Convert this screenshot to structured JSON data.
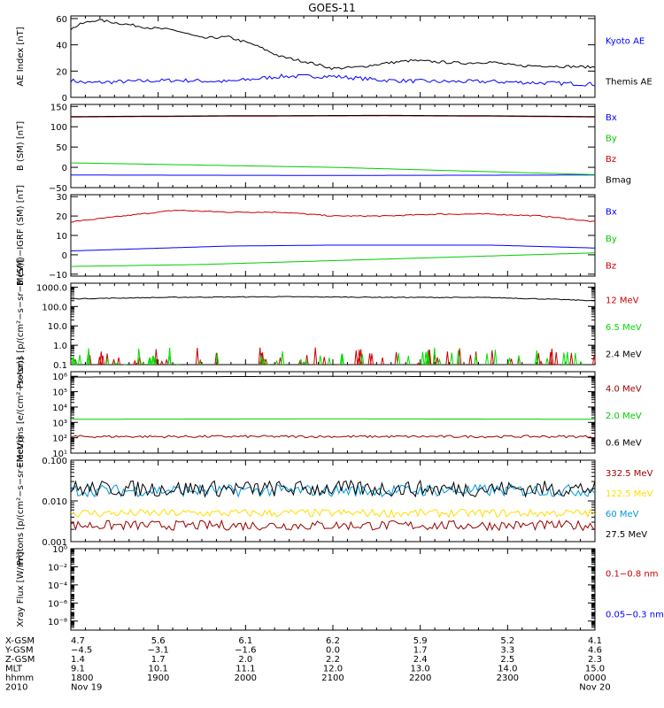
{
  "title": "GOES-11",
  "chart_data": [
    {
      "type": "line",
      "ylabel": "AE Index [nT]",
      "ylim": [
        0,
        62
      ],
      "scale": "linear",
      "yticks": [
        {
          "v": 0,
          "t": "0"
        },
        {
          "v": 20,
          "t": "20"
        },
        {
          "v": 40,
          "t": "40"
        },
        {
          "v": 60,
          "t": "60"
        }
      ],
      "series": [
        {
          "name": "Kyoto AE",
          "color": "#0000ff",
          "noise": 1.5,
          "x": [
            0,
            0.03,
            0.1,
            0.2,
            0.3,
            0.4,
            0.5,
            0.6,
            0.7,
            0.8,
            0.9,
            1.0
          ],
          "values": [
            13,
            11,
            12,
            13,
            12,
            16,
            16,
            13,
            12,
            12,
            11,
            10
          ]
        },
        {
          "name": "Themis AE",
          "color": "#000000",
          "noise": 1.0,
          "x": [
            0,
            0.02,
            0.05,
            0.1,
            0.15,
            0.2,
            0.25,
            0.3,
            0.35,
            0.4,
            0.45,
            0.5,
            0.55,
            0.6,
            0.65,
            0.7,
            0.75,
            0.8,
            0.85,
            0.9,
            1.0
          ],
          "values": [
            52,
            56,
            59,
            56,
            53,
            51,
            45,
            46,
            40,
            31,
            27,
            22,
            23,
            26,
            28,
            27,
            26,
            27,
            24,
            24,
            23
          ]
        }
      ]
    },
    {
      "type": "line",
      "ylabel": "B (SM) [nT]",
      "ylim": [
        -50,
        155
      ],
      "scale": "linear",
      "yticks": [
        {
          "v": -50,
          "t": "−50"
        },
        {
          "v": 0,
          "t": "0"
        },
        {
          "v": 50,
          "t": "50"
        },
        {
          "v": 100,
          "t": "100"
        },
        {
          "v": 150,
          "t": "150"
        }
      ],
      "series": [
        {
          "name": "Bx",
          "color": "#0000ff",
          "noise": 0,
          "x": [
            0,
            0.5,
            1.0
          ],
          "values": [
            -19,
            -20,
            -19
          ]
        },
        {
          "name": "By",
          "color": "#00cc00",
          "noise": 0,
          "x": [
            0,
            0.5,
            1.0
          ],
          "values": [
            11,
            0,
            -18
          ]
        },
        {
          "name": "Bz",
          "color": "#cc0000",
          "noise": 0,
          "x": [
            0,
            0.3,
            0.6,
            0.8,
            1.0
          ],
          "values": [
            124,
            126,
            127,
            126,
            124
          ]
        },
        {
          "name": "Bmag",
          "color": "#000000",
          "noise": 0,
          "x": [
            0,
            0.3,
            0.6,
            0.8,
            1.0
          ],
          "values": [
            125,
            127,
            128,
            127,
            125
          ]
        }
      ]
    },
    {
      "type": "line",
      "ylabel": "B (SM)−IGRF (SM) [nT]",
      "ylim": [
        -11,
        31
      ],
      "scale": "linear",
      "yticks": [
        {
          "v": -10,
          "t": "−10"
        },
        {
          "v": 0,
          "t": "0"
        },
        {
          "v": 10,
          "t": "10"
        },
        {
          "v": 20,
          "t": "20"
        },
        {
          "v": 30,
          "t": "30"
        }
      ],
      "series": [
        {
          "name": "Bx",
          "color": "#0000ff",
          "noise": 0,
          "x": [
            0,
            0.3,
            0.5,
            0.8,
            1.0
          ],
          "values": [
            2,
            4.5,
            5,
            5,
            3.5
          ]
        },
        {
          "name": "By",
          "color": "#00cc00",
          "noise": 0,
          "x": [
            0,
            0.25,
            0.5,
            0.75,
            1.0
          ],
          "values": [
            -6,
            -5,
            -3,
            -1,
            1
          ]
        },
        {
          "name": "Bz",
          "color": "#cc0000",
          "noise": 0.3,
          "x": [
            0,
            0.1,
            0.2,
            0.3,
            0.4,
            0.5,
            0.6,
            0.7,
            0.8,
            0.9,
            1.0
          ],
          "values": [
            17,
            20,
            23,
            22,
            22,
            20,
            20,
            21,
            21,
            20,
            17
          ]
        }
      ]
    },
    {
      "type": "line",
      "ylabel": "Protons [p/(cm²−s−sr−MeV)]",
      "ylim": [
        0.1,
        1600
      ],
      "scale": "log",
      "yticks": [
        {
          "v": 0.1,
          "t": "0.1"
        },
        {
          "v": 1,
          "t": "1.0"
        },
        {
          "v": 10,
          "t": "10.0"
        },
        {
          "v": 100,
          "t": "100.0"
        },
        {
          "v": 1000,
          "t": "1000.0"
        }
      ],
      "series": [
        {
          "name": "12 MeV",
          "color": "#cc0000",
          "noise": 0,
          "spiky": true,
          "x": [
            0,
            1.0
          ],
          "values": [
            0.1,
            0.1
          ]
        },
        {
          "name": "6.5 MeV",
          "color": "#00dd00",
          "noise": 0,
          "spiky": true,
          "x": [
            0,
            1.0
          ],
          "values": [
            0.1,
            0.1
          ]
        },
        {
          "name": "2.4 MeV",
          "color": "#000000",
          "noise": 0.02,
          "x": [
            0,
            0.2,
            0.4,
            0.6,
            0.8,
            1.0
          ],
          "values": [
            250,
            300,
            320,
            300,
            290,
            200
          ]
        }
      ]
    },
    {
      "type": "line",
      "ylabel": "Electrons [e/(cm²−s−sr)]",
      "ylim": [
        10,
        2000000
      ],
      "scale": "log",
      "yticks": [
        {
          "v": 10,
          "t": "10¹"
        },
        {
          "v": 100,
          "t": "10²"
        },
        {
          "v": 1000,
          "t": "10³"
        },
        {
          "v": 10000,
          "t": "10⁴"
        },
        {
          "v": 100000,
          "t": "10⁵"
        },
        {
          "v": 1000000,
          "t": "10⁶"
        }
      ],
      "series": [
        {
          "name": "4.0 MeV",
          "color": "#990000",
          "noise": 0.08,
          "x": [
            0,
            1.0
          ],
          "values": [
            120,
            120
          ]
        },
        {
          "name": "2.0 MeV",
          "color": "#00cc00",
          "noise": 0,
          "x": [
            0,
            0.5,
            1.0
          ],
          "values": [
            1600,
            1700,
            1600
          ]
        },
        {
          "name": "0.6 MeV",
          "color": "#000000",
          "noise": 0,
          "x": [
            0,
            0.5,
            1.0
          ],
          "values": [
            900000,
            1000000,
            900000
          ]
        }
      ]
    },
    {
      "type": "line",
      "ylabel": "Protons [p/(cm²−s−sr−MeV)]",
      "ylim": [
        0.001,
        0.1
      ],
      "scale": "log",
      "yticks": [
        {
          "v": 0.001,
          "t": "0.001"
        },
        {
          "v": 0.01,
          "t": "0.010"
        },
        {
          "v": 0.1,
          "t": "0.100"
        }
      ],
      "series": [
        {
          "name": "332.5 MeV",
          "color": "#990000",
          "noise": 0.12,
          "x": [
            0,
            1.0
          ],
          "values": [
            0.0025,
            0.0025
          ]
        },
        {
          "name": "122.5 MeV",
          "color": "#ffdd00",
          "noise": 0.1,
          "x": [
            0,
            1.0
          ],
          "values": [
            0.005,
            0.005
          ]
        },
        {
          "name": "60 MeV",
          "color": "#0099dd",
          "noise": 0.15,
          "x": [
            0,
            1.0
          ],
          "values": [
            0.018,
            0.018
          ]
        },
        {
          "name": "27.5 MeV",
          "color": "#000000",
          "noise": 0.2,
          "x": [
            0,
            1.0
          ],
          "values": [
            0.02,
            0.02
          ]
        }
      ]
    },
    {
      "type": "line",
      "ylabel": "Xray Flux [W/m²]",
      "ylim": [
        1e-09,
        1
      ],
      "scale": "log",
      "yticks": [
        {
          "v": 1e-08,
          "t": "10⁻⁸"
        },
        {
          "v": 1e-06,
          "t": "10⁻⁶"
        },
        {
          "v": 0.0001,
          "t": "10⁻⁴"
        },
        {
          "v": 0.01,
          "t": "10⁻²"
        },
        {
          "v": 1,
          "t": "10⁰"
        }
      ],
      "series": [
        {
          "name": "0.1−0.8 nm",
          "color": "#cc0000",
          "noise": 0,
          "x": [],
          "values": []
        },
        {
          "name": "0.05−0.3 nm",
          "color": "#0000ff",
          "noise": 0,
          "x": [],
          "values": []
        }
      ]
    }
  ],
  "xaxis": {
    "rows": [
      "X-GSM",
      "Y-GSM",
      "Z-GSM",
      "MLT",
      "hhmm",
      "2010"
    ],
    "columns": [
      {
        "vals": [
          "4.7",
          "−4.5",
          "1.4",
          "9.1",
          "1800",
          "Nov 19"
        ]
      },
      {
        "vals": [
          "5.6",
          "−3.1",
          "1.7",
          "10.1",
          "1900",
          ""
        ]
      },
      {
        "vals": [
          "6.1",
          "−1.6",
          "2.0",
          "11.1",
          "2000",
          ""
        ]
      },
      {
        "vals": [
          "6.2",
          "0.0",
          "2.2",
          "12.0",
          "2100",
          ""
        ]
      },
      {
        "vals": [
          "5.9",
          "1.7",
          "2.4",
          "13.0",
          "2200",
          ""
        ]
      },
      {
        "vals": [
          "5.2",
          "3.3",
          "2.5",
          "14.0",
          "2300",
          ""
        ]
      },
      {
        "vals": [
          "4.1",
          "4.6",
          "2.3",
          "15.0",
          "0000",
          "Nov 20"
        ]
      }
    ]
  }
}
